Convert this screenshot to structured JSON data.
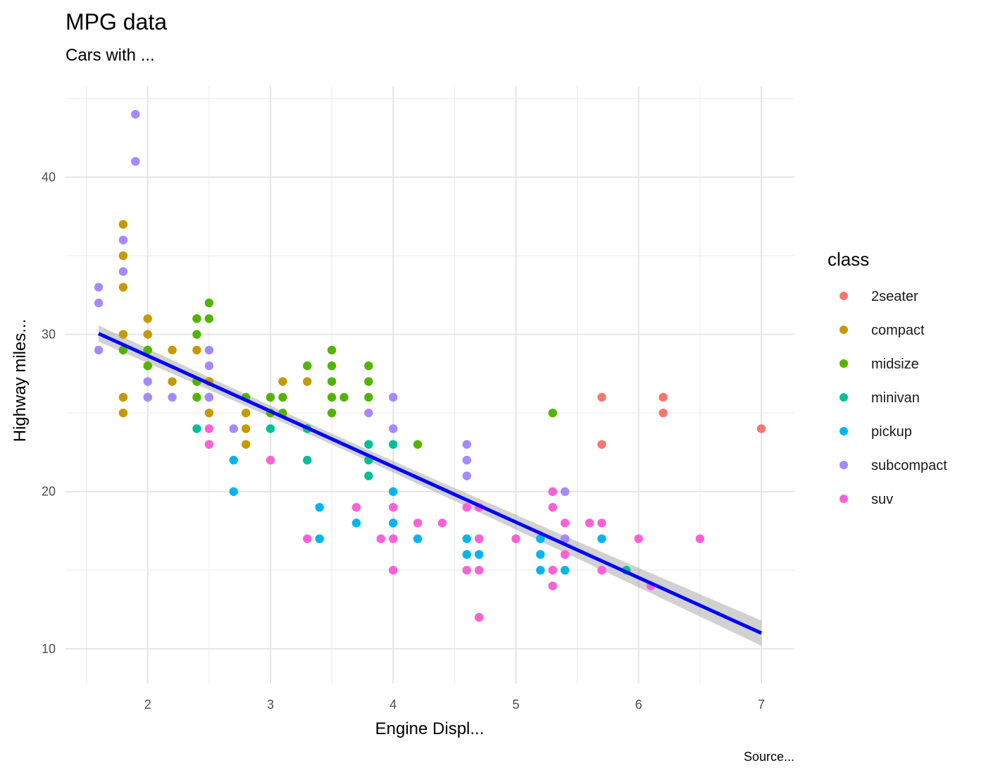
{
  "chart_data": {
    "type": "scatter",
    "title": "MPG data",
    "subtitle": "Cars with ...",
    "xlabel": "Engine Displ...",
    "ylabel": "Highway miles...",
    "caption": "Source...",
    "legend_title": "class",
    "legend_position": "right",
    "grid": true,
    "xlim": [
      1.33,
      7.27
    ],
    "ylim": [
      7.8,
      45.8
    ],
    "xticks": [
      2,
      3,
      4,
      5,
      6,
      7
    ],
    "yticks": [
      10,
      20,
      30,
      40
    ],
    "series": [
      {
        "name": "2seater",
        "color": "#F8766D",
        "points": [
          [
            5.7,
            26
          ],
          [
            5.7,
            23
          ],
          [
            6.2,
            26
          ],
          [
            6.2,
            25
          ],
          [
            7.0,
            24
          ]
        ]
      },
      {
        "name": "compact",
        "color": "#C49A00",
        "points": [
          [
            1.8,
            37
          ],
          [
            1.8,
            35
          ],
          [
            1.8,
            33
          ],
          [
            1.8,
            30
          ],
          [
            1.8,
            26
          ],
          [
            1.8,
            25
          ],
          [
            2.0,
            31
          ],
          [
            2.0,
            30
          ],
          [
            2.0,
            29
          ],
          [
            2.0,
            28
          ],
          [
            2.0,
            26
          ],
          [
            2.2,
            29
          ],
          [
            2.2,
            27
          ],
          [
            2.4,
            31
          ],
          [
            2.4,
            29
          ],
          [
            2.4,
            27
          ],
          [
            2.5,
            27
          ],
          [
            2.5,
            26
          ],
          [
            2.5,
            25
          ],
          [
            2.8,
            25
          ],
          [
            2.8,
            24
          ],
          [
            2.8,
            23
          ],
          [
            3.0,
            26
          ],
          [
            3.1,
            27
          ],
          [
            3.3,
            27
          ]
        ]
      },
      {
        "name": "midsize",
        "color": "#53B400",
        "points": [
          [
            1.8,
            29
          ],
          [
            2.0,
            29
          ],
          [
            2.0,
            28
          ],
          [
            2.4,
            31
          ],
          [
            2.4,
            30
          ],
          [
            2.4,
            27
          ],
          [
            2.4,
            26
          ],
          [
            2.5,
            32
          ],
          [
            2.5,
            31
          ],
          [
            2.5,
            26
          ],
          [
            2.8,
            26
          ],
          [
            3.0,
            26
          ],
          [
            3.0,
            25
          ],
          [
            3.1,
            26
          ],
          [
            3.1,
            25
          ],
          [
            3.3,
            28
          ],
          [
            3.5,
            29
          ],
          [
            3.5,
            28
          ],
          [
            3.5,
            27
          ],
          [
            3.5,
            26
          ],
          [
            3.5,
            25
          ],
          [
            3.6,
            26
          ],
          [
            3.8,
            28
          ],
          [
            3.8,
            27
          ],
          [
            3.8,
            26
          ],
          [
            4.2,
            23
          ],
          [
            5.3,
            25
          ]
        ]
      },
      {
        "name": "minivan",
        "color": "#00C094",
        "points": [
          [
            2.4,
            24
          ],
          [
            3.0,
            24
          ],
          [
            3.3,
            24
          ],
          [
            3.3,
            22
          ],
          [
            3.8,
            23
          ],
          [
            3.8,
            22
          ],
          [
            3.8,
            21
          ],
          [
            4.0,
            23
          ],
          [
            5.9,
            15
          ]
        ]
      },
      {
        "name": "pickup",
        "color": "#00B6EB",
        "points": [
          [
            2.7,
            22
          ],
          [
            2.7,
            20
          ],
          [
            3.4,
            19
          ],
          [
            3.4,
            17
          ],
          [
            3.7,
            18
          ],
          [
            4.0,
            20
          ],
          [
            4.0,
            18
          ],
          [
            4.2,
            17
          ],
          [
            4.6,
            17
          ],
          [
            4.6,
            16
          ],
          [
            4.7,
            17
          ],
          [
            4.7,
            16
          ],
          [
            4.7,
            12
          ],
          [
            5.2,
            17
          ],
          [
            5.2,
            16
          ],
          [
            5.2,
            15
          ],
          [
            5.4,
            17
          ],
          [
            5.4,
            15
          ],
          [
            5.7,
            17
          ]
        ]
      },
      {
        "name": "subcompact",
        "color": "#A58AFF",
        "points": [
          [
            1.6,
            33
          ],
          [
            1.6,
            32
          ],
          [
            1.6,
            29
          ],
          [
            1.8,
            36
          ],
          [
            1.8,
            34
          ],
          [
            1.9,
            44
          ],
          [
            1.9,
            41
          ],
          [
            2.0,
            27
          ],
          [
            2.0,
            26
          ],
          [
            2.2,
            26
          ],
          [
            2.5,
            29
          ],
          [
            2.5,
            28
          ],
          [
            2.5,
            26
          ],
          [
            2.7,
            24
          ],
          [
            3.8,
            25
          ],
          [
            4.0,
            26
          ],
          [
            4.0,
            24
          ],
          [
            4.6,
            23
          ],
          [
            4.6,
            22
          ],
          [
            4.6,
            21
          ],
          [
            5.4,
            20
          ],
          [
            5.4,
            17
          ],
          [
            4.7,
            19
          ]
        ]
      },
      {
        "name": "suv",
        "color": "#FB61D7",
        "points": [
          [
            2.5,
            24
          ],
          [
            2.5,
            23
          ],
          [
            3.0,
            22
          ],
          [
            3.3,
            17
          ],
          [
            3.7,
            19
          ],
          [
            3.9,
            17
          ],
          [
            4.0,
            19
          ],
          [
            4.0,
            17
          ],
          [
            4.0,
            15
          ],
          [
            4.2,
            18
          ],
          [
            4.4,
            18
          ],
          [
            4.6,
            19
          ],
          [
            4.6,
            15
          ],
          [
            4.7,
            19
          ],
          [
            4.7,
            17
          ],
          [
            4.7,
            15
          ],
          [
            4.7,
            12
          ],
          [
            5.0,
            17
          ],
          [
            5.3,
            20
          ],
          [
            5.3,
            19
          ],
          [
            5.3,
            15
          ],
          [
            5.3,
            14
          ],
          [
            5.4,
            18
          ],
          [
            5.4,
            16
          ],
          [
            5.6,
            18
          ],
          [
            5.7,
            18
          ],
          [
            5.7,
            15
          ],
          [
            6.0,
            17
          ],
          [
            6.1,
            14
          ],
          [
            6.5,
            17
          ]
        ]
      }
    ],
    "trend": {
      "method": "linear",
      "color": "#0000FF",
      "ci_color": "#999999",
      "x_start": 1.6,
      "x_end": 7.0,
      "y_start": 30.05,
      "y_end": 11.0,
      "ci_halfwidth_ends": 0.8,
      "ci_halfwidth_center": 0.35,
      "x_center": 3.47
    }
  }
}
